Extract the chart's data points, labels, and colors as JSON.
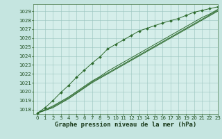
{
  "xlabel": "Graphe pression niveau de la mer (hPa)",
  "background_color": "#c5e5e0",
  "plot_bg_color": "#d5eeea",
  "grid_color": "#99c4be",
  "line_color": "#2e6b2e",
  "xlim": [
    -0.5,
    23
  ],
  "ylim": [
    1017.5,
    1029.8
  ],
  "yticks": [
    1018,
    1019,
    1020,
    1021,
    1022,
    1023,
    1024,
    1025,
    1026,
    1027,
    1028,
    1029
  ],
  "xticks": [
    0,
    1,
    2,
    3,
    4,
    5,
    6,
    7,
    8,
    9,
    10,
    11,
    12,
    13,
    14,
    15,
    16,
    17,
    18,
    19,
    20,
    21,
    22,
    23
  ],
  "series": [
    [
      1017.6,
      1018.2,
      1019.0,
      1019.9,
      1020.7,
      1021.6,
      1022.4,
      1023.2,
      1023.9,
      1024.8,
      1025.3,
      1025.8,
      1026.3,
      1026.8,
      1027.1,
      1027.4,
      1027.7,
      1027.95,
      1028.2,
      1028.55,
      1028.9,
      1029.1,
      1029.3,
      1029.5
    ],
    [
      1017.6,
      1018.0,
      1018.4,
      1018.9,
      1019.4,
      1020.0,
      1020.6,
      1021.2,
      1021.7,
      1022.3,
      1022.8,
      1023.3,
      1023.8,
      1024.3,
      1024.8,
      1025.3,
      1025.8,
      1026.3,
      1026.8,
      1027.3,
      1027.8,
      1028.3,
      1028.7,
      1029.2
    ],
    [
      1017.6,
      1017.9,
      1018.3,
      1018.8,
      1019.3,
      1019.9,
      1020.5,
      1021.1,
      1021.6,
      1022.1,
      1022.6,
      1023.1,
      1023.6,
      1024.1,
      1024.6,
      1025.1,
      1025.6,
      1026.1,
      1026.6,
      1027.1,
      1027.6,
      1028.1,
      1028.6,
      1029.1
    ],
    [
      1017.6,
      1017.9,
      1018.2,
      1018.7,
      1019.2,
      1019.8,
      1020.4,
      1021.0,
      1021.5,
      1022.0,
      1022.5,
      1023.0,
      1023.5,
      1024.0,
      1024.5,
      1025.0,
      1025.5,
      1026.0,
      1026.5,
      1027.0,
      1027.5,
      1028.0,
      1028.5,
      1029.0
    ]
  ],
  "marker": "D",
  "marker_size": 2.0,
  "title_font_size": 6.5,
  "tick_font_size": 5.0
}
